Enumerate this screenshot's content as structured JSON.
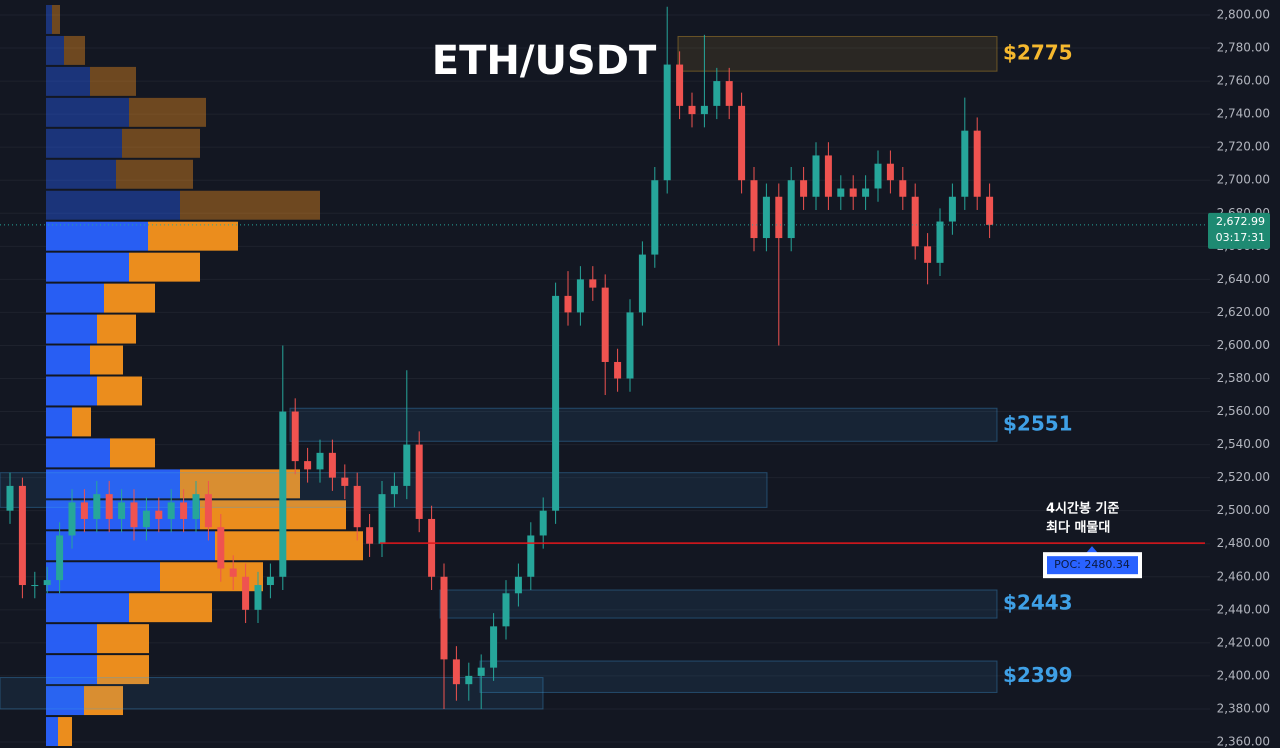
{
  "chart_data": {
    "type": "candlestick",
    "title": "ETH/USDT",
    "ylim": [
      2360,
      2800
    ],
    "yticks": [
      {
        "value": 2360,
        "label": "2,360.00"
      },
      {
        "value": 2380,
        "label": "2,380.00"
      },
      {
        "value": 2400,
        "label": "2,400.00"
      },
      {
        "value": 2420,
        "label": "2,420.00"
      },
      {
        "value": 2440,
        "label": "2,440.00"
      },
      {
        "value": 2460,
        "label": "2,460.00"
      },
      {
        "value": 2480,
        "label": "2,480.00"
      },
      {
        "value": 2500,
        "label": "2,500.00"
      },
      {
        "value": 2520,
        "label": "2,520.00"
      },
      {
        "value": 2540,
        "label": "2,540.00"
      },
      {
        "value": 2560,
        "label": "2,560.00"
      },
      {
        "value": 2580,
        "label": "2,580.00"
      },
      {
        "value": 2600,
        "label": "2,600.00"
      },
      {
        "value": 2620,
        "label": "2,620.00"
      },
      {
        "value": 2640,
        "label": "2,640.00"
      },
      {
        "value": 2660,
        "label": "2,660.00"
      },
      {
        "value": 2680,
        "label": "2,680.00"
      },
      {
        "value": 2700,
        "label": "2,700.00"
      },
      {
        "value": 2720,
        "label": "2,720.00"
      },
      {
        "value": 2740,
        "label": "2,740.00"
      },
      {
        "value": 2760,
        "label": "2,760.00"
      },
      {
        "value": 2780,
        "label": "2,780.00"
      },
      {
        "value": 2800,
        "label": "2,800.00"
      }
    ],
    "grid": true,
    "up_color": "#26a69a",
    "down_color": "#ef5350",
    "candles": [
      [
        2500,
        2523,
        2492,
        2515
      ],
      [
        2515,
        2520,
        2447,
        2455
      ],
      [
        2455,
        2463,
        2447,
        2455
      ],
      [
        2455,
        2466,
        2450,
        2458
      ],
      [
        2458,
        2493,
        2450,
        2485
      ],
      [
        2485,
        2513,
        2477,
        2505
      ],
      [
        2505,
        2513,
        2487,
        2495
      ],
      [
        2495,
        2518,
        2487,
        2510
      ],
      [
        2510,
        2518,
        2487,
        2495
      ],
      [
        2495,
        2513,
        2487,
        2505
      ],
      [
        2505,
        2513,
        2482,
        2490
      ],
      [
        2490,
        2508,
        2482,
        2500
      ],
      [
        2500,
        2508,
        2487,
        2495
      ],
      [
        2495,
        2513,
        2487,
        2505
      ],
      [
        2505,
        2513,
        2487,
        2495
      ],
      [
        2495,
        2518,
        2487,
        2510
      ],
      [
        2510,
        2518,
        2482,
        2490
      ],
      [
        2490,
        2498,
        2457,
        2465
      ],
      [
        2465,
        2473,
        2452,
        2460
      ],
      [
        2460,
        2468,
        2432,
        2440
      ],
      [
        2440,
        2463,
        2432,
        2455
      ],
      [
        2455,
        2468,
        2447,
        2460
      ],
      [
        2460,
        2600,
        2452,
        2560
      ],
      [
        2560,
        2568,
        2522,
        2530
      ],
      [
        2530,
        2538,
        2517,
        2525
      ],
      [
        2525,
        2543,
        2517,
        2535
      ],
      [
        2535,
        2543,
        2512,
        2520
      ],
      [
        2520,
        2528,
        2507,
        2515
      ],
      [
        2515,
        2523,
        2482,
        2490
      ],
      [
        2490,
        2498,
        2472,
        2480
      ],
      [
        2480,
        2518,
        2472,
        2510
      ],
      [
        2510,
        2523,
        2502,
        2515
      ],
      [
        2515,
        2585,
        2507,
        2540
      ],
      [
        2540,
        2548,
        2487,
        2495
      ],
      [
        2495,
        2503,
        2452,
        2460
      ],
      [
        2460,
        2468,
        2380,
        2410
      ],
      [
        2410,
        2418,
        2385,
        2395
      ],
      [
        2395,
        2408,
        2385,
        2400
      ],
      [
        2400,
        2413,
        2380,
        2405
      ],
      [
        2405,
        2438,
        2397,
        2430
      ],
      [
        2430,
        2458,
        2422,
        2450
      ],
      [
        2450,
        2468,
        2442,
        2460
      ],
      [
        2460,
        2493,
        2452,
        2485
      ],
      [
        2485,
        2508,
        2477,
        2500
      ],
      [
        2500,
        2638,
        2492,
        2630
      ],
      [
        2630,
        2645,
        2612,
        2620
      ],
      [
        2620,
        2648,
        2612,
        2640
      ],
      [
        2640,
        2648,
        2627,
        2635
      ],
      [
        2635,
        2643,
        2570,
        2590
      ],
      [
        2590,
        2598,
        2572,
        2580
      ],
      [
        2580,
        2628,
        2572,
        2620
      ],
      [
        2620,
        2663,
        2612,
        2655
      ],
      [
        2655,
        2708,
        2647,
        2700
      ],
      [
        2700,
        2805,
        2692,
        2770
      ],
      [
        2770,
        2778,
        2737,
        2745
      ],
      [
        2745,
        2753,
        2732,
        2740
      ],
      [
        2740,
        2788,
        2732,
        2745
      ],
      [
        2745,
        2768,
        2737,
        2760
      ],
      [
        2760,
        2768,
        2737,
        2745
      ],
      [
        2745,
        2753,
        2692,
        2700
      ],
      [
        2700,
        2708,
        2657,
        2665
      ],
      [
        2665,
        2698,
        2657,
        2690
      ],
      [
        2690,
        2698,
        2600,
        2665
      ],
      [
        2665,
        2708,
        2657,
        2700
      ],
      [
        2700,
        2708,
        2682,
        2690
      ],
      [
        2690,
        2723,
        2682,
        2715
      ],
      [
        2715,
        2723,
        2682,
        2690
      ],
      [
        2690,
        2703,
        2682,
        2695
      ],
      [
        2695,
        2703,
        2682,
        2690
      ],
      [
        2690,
        2703,
        2682,
        2695
      ],
      [
        2695,
        2718,
        2687,
        2710
      ],
      [
        2710,
        2718,
        2692,
        2700
      ],
      [
        2700,
        2708,
        2682,
        2690
      ],
      [
        2690,
        2698,
        2652,
        2660
      ],
      [
        2660,
        2668,
        2637,
        2650
      ],
      [
        2650,
        2683,
        2642,
        2675
      ],
      [
        2675,
        2698,
        2667,
        2690
      ],
      [
        2690,
        2750,
        2682,
        2730
      ],
      [
        2730,
        2738,
        2682,
        2690
      ],
      [
        2690,
        2698,
        2665,
        2672.99
      ]
    ],
    "volume_profile": {
      "buy_color": "#2962ff",
      "sell_color": "#f7941d",
      "buy": [
        6,
        18,
        44,
        83,
        76,
        70,
        134,
        102,
        83,
        58,
        51,
        44,
        51,
        26,
        64,
        134,
        154,
        169,
        114,
        83,
        51,
        51,
        38,
        12
      ],
      "sell": [
        8,
        21,
        46,
        77,
        78,
        77,
        140,
        90,
        71,
        51,
        39,
        33,
        45,
        19,
        45,
        120,
        146,
        148,
        103,
        83,
        52,
        52,
        39,
        14
      ]
    },
    "zones": [
      {
        "label": "$2775",
        "low": 2766,
        "high": 2787,
        "color": "#f5b82e"
      },
      {
        "label": "$2551",
        "low": 2542,
        "high": 2562,
        "color": "#3fa0e6"
      },
      {
        "label": "$2443",
        "low": 2435,
        "high": 2452,
        "color": "#3fa0e6"
      },
      {
        "label": "$2399",
        "low": 2390,
        "high": 2409,
        "color": "#3fa0e6"
      },
      {
        "low": 2502,
        "high": 2523,
        "color": "#3fa0e6"
      },
      {
        "low": 2380,
        "high": 2399,
        "color": "#3fa0e6"
      }
    ],
    "poc": {
      "value": 2480.34,
      "label": "POC: 2480.34",
      "color": "#e3161b"
    },
    "annotation": [
      "4시간봉 기준",
      "최다 매물대"
    ],
    "last_price": {
      "value": 2672.99,
      "label": "2,672.99"
    },
    "countdown": "03:17:31"
  }
}
